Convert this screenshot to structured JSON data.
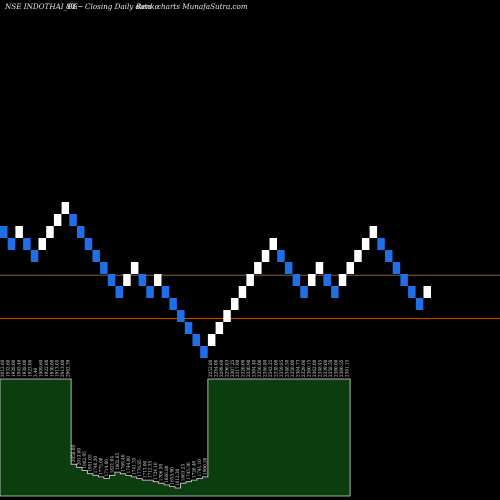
{
  "header": {
    "symbol": "NSE INDOTHAI_BE",
    "change": "8%~",
    "description": "Closing Daily data",
    "chart_kind": "Renko",
    "site": "charts MunafaSutra.com"
  },
  "colors": {
    "background": "#000000",
    "up_brick": "#ffffff",
    "down_brick": "#1e6fe8",
    "level_line": "#b8641e",
    "volume_fill": "#0b3d0f",
    "volume_edge": "#dcdcdc"
  },
  "chart_data": [
    {
      "type": "renko",
      "bricks": [
        {
          "dir": "down",
          "price": 470
        },
        {
          "dir": "down",
          "price": 465
        },
        {
          "dir": "up",
          "price": 470
        },
        {
          "dir": "down",
          "price": 465
        },
        {
          "dir": "down",
          "price": 460
        },
        {
          "dir": "up",
          "price": 465
        },
        {
          "dir": "up",
          "price": 470
        },
        {
          "dir": "up",
          "price": 475
        },
        {
          "dir": "up",
          "price": 480
        },
        {
          "dir": "down",
          "price": 475
        },
        {
          "dir": "down",
          "price": 470
        },
        {
          "dir": "down",
          "price": 465
        },
        {
          "dir": "down",
          "price": 460
        },
        {
          "dir": "down",
          "price": 455
        },
        {
          "dir": "down",
          "price": 450
        },
        {
          "dir": "down",
          "price": 445
        },
        {
          "dir": "up",
          "price": 450
        },
        {
          "dir": "up",
          "price": 455
        },
        {
          "dir": "down",
          "price": 450
        },
        {
          "dir": "down",
          "price": 445
        },
        {
          "dir": "up",
          "price": 450
        },
        {
          "dir": "down",
          "price": 445
        },
        {
          "dir": "down",
          "price": 440
        },
        {
          "dir": "down",
          "price": 435
        },
        {
          "dir": "down",
          "price": 430
        },
        {
          "dir": "down",
          "price": 425
        },
        {
          "dir": "down",
          "price": 420
        },
        {
          "dir": "up",
          "price": 425
        },
        {
          "dir": "up",
          "price": 430
        },
        {
          "dir": "up",
          "price": 435
        },
        {
          "dir": "up",
          "price": 440
        },
        {
          "dir": "up",
          "price": 445
        },
        {
          "dir": "up",
          "price": 450
        },
        {
          "dir": "up",
          "price": 455
        },
        {
          "dir": "up",
          "price": 460
        },
        {
          "dir": "up",
          "price": 465
        },
        {
          "dir": "down",
          "price": 460
        },
        {
          "dir": "down",
          "price": 455
        },
        {
          "dir": "down",
          "price": 450
        },
        {
          "dir": "down",
          "price": 445
        },
        {
          "dir": "up",
          "price": 450
        },
        {
          "dir": "up",
          "price": 455
        },
        {
          "dir": "down",
          "price": 450
        },
        {
          "dir": "down",
          "price": 445
        },
        {
          "dir": "up",
          "price": 450
        },
        {
          "dir": "up",
          "price": 455
        },
        {
          "dir": "up",
          "price": 460
        },
        {
          "dir": "up",
          "price": 465
        },
        {
          "dir": "up",
          "price": 470
        },
        {
          "dir": "down",
          "price": 465
        },
        {
          "dir": "down",
          "price": 460
        },
        {
          "dir": "down",
          "price": 455
        },
        {
          "dir": "down",
          "price": 450
        },
        {
          "dir": "down",
          "price": 445
        },
        {
          "dir": "down",
          "price": 440
        },
        {
          "dir": "up",
          "price": 445
        }
      ],
      "levels": [
        452,
        434
      ],
      "price_range": [
        400,
        520
      ]
    },
    {
      "type": "area",
      "segments": [
        {
          "level": 1.0,
          "labels": [
            "2012.66",
            "1932.60",
            "1928.00",
            "1945.40",
            "1938.00",
            "1923.00",
            "3.40",
            "1909.60",
            "1922.60",
            "1930.00",
            "1913.05",
            "2913.00",
            "2962.39"
          ]
        },
        {
          "level": 0.272,
          "labels": [
            "2058.00"
          ]
        },
        {
          "level": 0.245,
          "labels": [
            "2013.60"
          ]
        },
        {
          "level": 0.218,
          "labels": [
            "1982.95"
          ]
        },
        {
          "level": 0.191,
          "labels": [
            "1951.05"
          ]
        },
        {
          "level": 0.177,
          "labels": [
            "1746.30"
          ]
        },
        {
          "level": 0.163,
          "labels": [
            "1775.00"
          ]
        },
        {
          "level": 0.15,
          "labels": [
            "1714.60"
          ]
        },
        {
          "level": 0.177,
          "labels": [
            "1821.04"
          ]
        },
        {
          "level": 0.204,
          "labels": [
            "1802.85"
          ]
        },
        {
          "level": 0.19,
          "labels": [
            "1769.40"
          ]
        },
        {
          "level": 0.176,
          "labels": [
            "1744.00"
          ]
        },
        {
          "level": 0.163,
          "labels": [
            "1741.55"
          ]
        },
        {
          "level": 0.149,
          "labels": [
            "1776.85"
          ]
        },
        {
          "level": 0.136,
          "labels": [
            "1713.00"
          ]
        },
        {
          "level": 0.136,
          "labels": [
            "1712.35"
          ]
        },
        {
          "level": 0.122,
          "labels": [
            "1724.10"
          ]
        },
        {
          "level": 0.109,
          "labels": [
            "1706.50"
          ]
        },
        {
          "level": 0.095,
          "labels": [
            "1686.80"
          ]
        },
        {
          "level": 0.081,
          "labels": [
            "1655.90"
          ]
        },
        {
          "level": 0.068,
          "labels": [
            "1612.30"
          ]
        },
        {
          "level": 0.109,
          "labels": [
            "1663.25"
          ]
        },
        {
          "level": 0.122,
          "labels": [
            "1745.30"
          ]
        },
        {
          "level": 0.136,
          "labels": [
            "1726.40"
          ]
        },
        {
          "level": 0.15,
          "labels": [
            "1741.10"
          ]
        },
        {
          "level": 0.163,
          "labels": [
            "1900.20"
          ]
        },
        {
          "level": 1.0,
          "labels": [
            "2252.80",
            "2284.00",
            "2299.60",
            "2296.03",
            "2307.25",
            "2317.00",
            "2326.00",
            "2330.90",
            "2304.40",
            "2356.00",
            "2346.80",
            "2342.25",
            "2338.00",
            "2359.85",
            "2348.50",
            "2356.00",
            "2364.73",
            "2329.00",
            "2360.15",
            "2362.00",
            "2348.45",
            "2339.00",
            "2358.50",
            "2360.00",
            "2360.55",
            "2361.15"
          ]
        }
      ]
    }
  ]
}
